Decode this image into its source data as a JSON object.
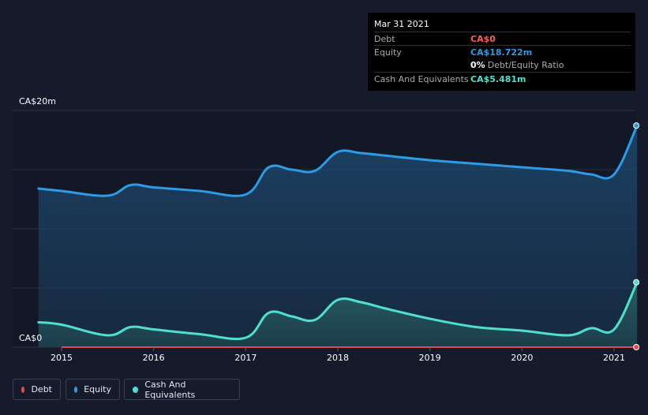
{
  "chart_data": {
    "type": "area",
    "y_axis": {
      "ylim": [
        0,
        20
      ],
      "top_label": "CA$20m",
      "bottom_label": "CA$0"
    },
    "x_axis": {
      "tick_labels": [
        "2015",
        "2016",
        "2017",
        "2018",
        "2019",
        "2020",
        "2021"
      ],
      "xlim": [
        2014.75,
        2021.25
      ]
    },
    "grid": true,
    "legend_position": "bottom-left",
    "series": [
      {
        "name": "Equity",
        "color": "#2d9be5",
        "x": [
          2014.75,
          2015.0,
          2015.5,
          2015.75,
          2016.0,
          2016.5,
          2017.0,
          2017.25,
          2017.5,
          2017.75,
          2018.0,
          2018.25,
          2018.5,
          2019.0,
          2019.5,
          2020.0,
          2020.5,
          2020.75,
          2021.0,
          2021.25
        ],
        "values": [
          13.4,
          13.2,
          12.8,
          13.7,
          13.5,
          13.2,
          12.9,
          15.2,
          15.0,
          14.9,
          16.5,
          16.4,
          16.2,
          15.8,
          15.5,
          15.2,
          14.9,
          14.6,
          14.6,
          18.722
        ]
      },
      {
        "name": "Cash And Equivalents",
        "color": "#4de0cf",
        "x": [
          2014.75,
          2015.0,
          2015.5,
          2015.75,
          2016.0,
          2016.5,
          2017.0,
          2017.25,
          2017.5,
          2017.75,
          2018.0,
          2018.25,
          2018.5,
          2019.0,
          2019.5,
          2020.0,
          2020.5,
          2020.75,
          2021.0,
          2021.25
        ],
        "values": [
          2.1,
          1.9,
          1.0,
          1.7,
          1.5,
          1.1,
          0.8,
          2.9,
          2.6,
          2.3,
          4.0,
          3.8,
          3.3,
          2.4,
          1.7,
          1.4,
          1.0,
          1.6,
          1.5,
          5.481
        ]
      },
      {
        "name": "Debt",
        "color": "#e5484d",
        "x": [
          2015.0,
          2021.25
        ],
        "values": [
          0,
          0
        ]
      }
    ]
  },
  "tooltip": {
    "date": "Mar 31 2021",
    "rows": [
      {
        "label": "Debt",
        "value": "CA$0",
        "color": "#ff5a5f"
      },
      {
        "label": "Equity",
        "value": "CA$18.722m",
        "color": "#2d9be5"
      },
      {
        "label": "",
        "value": "0%",
        "suffix": "Debt/Equity Ratio",
        "color": "#ffffff"
      },
      {
        "label": "Cash And Equivalents",
        "value": "CA$5.481m",
        "color": "#4de0cf"
      }
    ]
  },
  "legend": [
    {
      "label": "Debt",
      "color": "#e5484d"
    },
    {
      "label": "Equity",
      "color": "#2d9be5"
    },
    {
      "label": "Cash And Equivalents",
      "color": "#4de0cf"
    }
  ]
}
